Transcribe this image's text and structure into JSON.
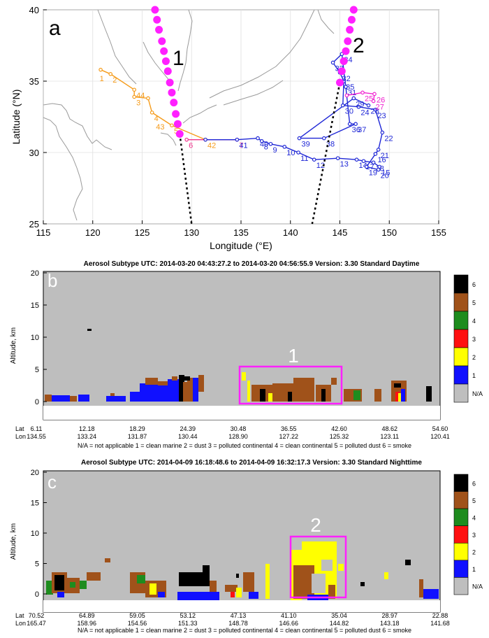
{
  "panel_a": {
    "letter": "a",
    "label_1": "1",
    "label_2": "2",
    "xlabel": "Longitude (°E)",
    "ylabel": "Latitude (°N)",
    "xticks": [
      "115",
      "120",
      "125",
      "130",
      "135",
      "140",
      "145",
      "150",
      "155"
    ],
    "yticks": [
      "25",
      "30",
      "35",
      "40"
    ]
  },
  "panel_b": {
    "letter": "b",
    "title": "Aerosol Subtype   UTC:  2014-03-20   04:43:27.2  to  2014-03-20   04:56:55.9   Version: 3.30  Standard Daytime",
    "ylabel": "Altitude, km",
    "yticks": [
      "20",
      "15",
      "10",
      "5",
      "0"
    ],
    "box_label": "1",
    "lat_header": "Lat",
    "lon_header": "Lon",
    "lat": [
      "6.11",
      "12.18",
      "18.29",
      "24.39",
      "30.48",
      "36.55",
      "42.60",
      "48.62",
      "54.60"
    ],
    "lon": [
      "134.55",
      "133.24",
      "131.87",
      "130.44",
      "128.90",
      "127.22",
      "125.32",
      "123.11",
      "120.41"
    ],
    "legend_text": "N/A = not applicable     1 = clean marine     2 = dust     3 = polluted continental     4 = clean continental     5 = polluted dust     6 = smoke"
  },
  "panel_c": {
    "letter": "c",
    "title": "Aerosol Subtype   UTC:  2014-04-09   16:18:48.6  to  2014-04-09   16:32:17.3   Version: 3.30  Standard Nighttime",
    "ylabel": "Altitude, km",
    "yticks": [
      "20",
      "15",
      "10",
      "5",
      "0"
    ],
    "box_label": "2",
    "lat_header": "Lat",
    "lon_header": "Lon",
    "lat": [
      "70.52",
      "64.89",
      "59.05",
      "53.12",
      "47.13",
      "41.10",
      "35.04",
      "28.97",
      "22.88"
    ],
    "lon": [
      "165.47",
      "158.96",
      "154.56",
      "151.33",
      "148.78",
      "146.66",
      "144.82",
      "143.18",
      "141.68"
    ],
    "legend_text": "N/A = not applicable     1 = clean marine     2 = dust     3 = polluted continental     4 = clean continental     5 = polluted dust     6 = smoke"
  },
  "colorbar": [
    {
      "label": "6",
      "color": "#000000"
    },
    {
      "label": "5",
      "color": "#a0521a"
    },
    {
      "label": "4",
      "color": "#1e8c1e"
    },
    {
      "label": "3",
      "color": "#ff1010"
    },
    {
      "label": "2",
      "color": "#ffff00"
    },
    {
      "label": "1",
      "color": "#1010ff"
    },
    {
      "label": "N/A",
      "color": "#bebebe"
    }
  ],
  "chart_data": [
    {
      "type": "line",
      "xlabel": "Longitude (°E)",
      "ylabel": "Latitude (°N)",
      "xlim": [
        115,
        155
      ],
      "ylim": [
        25,
        40
      ],
      "grid": true,
      "series": [
        {
          "color": "#f59b1a",
          "points": [
            {
              "x": 120.8,
              "y": 35.8,
              "label": ""
            },
            {
              "x": 121.8,
              "y": 35.5,
              "label": "2"
            },
            {
              "x": 124.2,
              "y": 34.4,
              "label": "44"
            },
            {
              "x": 124.2,
              "y": 33.9,
              "label": "3"
            },
            {
              "x": 125.6,
              "y": 33.8,
              "label": ""
            },
            {
              "x": 126.0,
              "y": 32.8,
              "label": "4"
            },
            {
              "x": 128.0,
              "y": 31.9,
              "label": "5"
            },
            {
              "x": 131.4,
              "y": 30.9,
              "label": "42"
            }
          ],
          "extra_labels": [
            {
              "x": 120.7,
              "y": 35.5,
              "label": "1"
            },
            {
              "x": 126.4,
              "y": 32.1,
              "label": "43"
            }
          ]
        },
        {
          "color": "#f0308a",
          "points": [
            {
              "x": 129.5,
              "y": 30.9,
              "label": "6"
            },
            {
              "x": 134.6,
              "y": 30.9,
              "label": "7"
            }
          ]
        },
        {
          "color": "#1f27d6",
          "points": [
            {
              "x": 131.4,
              "y": 30.9,
              "label": ""
            },
            {
              "x": 134.6,
              "y": 30.9,
              "label": "41"
            },
            {
              "x": 136.7,
              "y": 31.0,
              "label": "40"
            },
            {
              "x": 137.1,
              "y": 30.8,
              "label": "8"
            },
            {
              "x": 138.0,
              "y": 30.6,
              "label": "9"
            },
            {
              "x": 139.4,
              "y": 30.4,
              "label": "10"
            },
            {
              "x": 140.8,
              "y": 30.0,
              "label": "11"
            },
            {
              "x": 142.4,
              "y": 29.5,
              "label": "12"
            },
            {
              "x": 144.8,
              "y": 29.6,
              "label": "13"
            },
            {
              "x": 146.7,
              "y": 29.5,
              "label": "14"
            },
            {
              "x": 147.4,
              "y": 29.4,
              "label": "17"
            },
            {
              "x": 148.4,
              "y": 29.3,
              "label": "18"
            },
            {
              "x": 149.0,
              "y": 29.0,
              "label": "15"
            },
            {
              "x": 148.9,
              "y": 28.8,
              "label": "20"
            },
            {
              "x": 147.7,
              "y": 29.0,
              "label": "19"
            },
            {
              "x": 148.6,
              "y": 29.9,
              "label": "16"
            },
            {
              "x": 148.9,
              "y": 30.2,
              "label": "21"
            },
            {
              "x": 149.3,
              "y": 31.4,
              "label": "22"
            },
            {
              "x": 148.6,
              "y": 33.0,
              "label": "23"
            },
            {
              "x": 146.9,
              "y": 33.2,
              "label": "24"
            },
            {
              "x": 145.3,
              "y": 33.3,
              "label": "30"
            },
            {
              "x": 145.4,
              "y": 35.0,
              "label": "35"
            },
            {
              "x": 145.0,
              "y": 35.6,
              "label": "32"
            },
            {
              "x": 144.3,
              "y": 36.3,
              "label": "33"
            },
            {
              "x": 145.2,
              "y": 36.9,
              "label": "34"
            },
            {
              "x": 145.6,
              "y": 34.6,
              "label": "31"
            },
            {
              "x": 146.0,
              "y": 32.0,
              "label": "36"
            },
            {
              "x": 146.6,
              "y": 32.0,
              "label": "37"
            },
            {
              "x": 143.4,
              "y": 31.0,
              "label": "38"
            },
            {
              "x": 140.9,
              "y": 31.0,
              "label": "39"
            },
            {
              "x": 146.4,
              "y": 33.8,
              "label": "29"
            },
            {
              "x": 147.9,
              "y": 33.3,
              "label": "28"
            }
          ]
        },
        {
          "color": "#f020d0",
          "points": [
            {
              "x": 145.7,
              "y": 34.0,
              "label": ""
            },
            {
              "x": 147.3,
              "y": 34.2,
              "label": "25"
            },
            {
              "x": 148.5,
              "y": 34.1,
              "label": "26"
            },
            {
              "x": 148.4,
              "y": 33.6,
              "label": "27"
            }
          ]
        },
        {
          "name": "1",
          "color": "#ff20ff",
          "style": "track",
          "points": [
            {
              "x": 126.3,
              "y": 40.0
            },
            {
              "x": 126.5,
              "y": 39.3
            },
            {
              "x": 126.7,
              "y": 38.6
            },
            {
              "x": 127.0,
              "y": 37.8
            },
            {
              "x": 127.2,
              "y": 37.1
            },
            {
              "x": 127.4,
              "y": 36.4
            },
            {
              "x": 127.6,
              "y": 35.7
            },
            {
              "x": 127.8,
              "y": 34.9
            },
            {
              "x": 128.0,
              "y": 34.2
            },
            {
              "x": 128.2,
              "y": 33.5
            },
            {
              "x": 128.4,
              "y": 32.7
            },
            {
              "x": 128.6,
              "y": 32.0
            },
            {
              "x": 128.8,
              "y": 31.3
            }
          ]
        },
        {
          "name": "2",
          "color": "#ff20ff",
          "style": "track",
          "points": [
            {
              "x": 146.4,
              "y": 40.0
            },
            {
              "x": 146.2,
              "y": 39.3
            },
            {
              "x": 146.0,
              "y": 38.6
            },
            {
              "x": 145.8,
              "y": 37.8
            },
            {
              "x": 145.6,
              "y": 37.1
            },
            {
              "x": 145.4,
              "y": 36.4
            },
            {
              "x": 145.2,
              "y": 35.7
            },
            {
              "x": 145.0,
              "y": 34.9
            }
          ]
        }
      ]
    }
  ]
}
